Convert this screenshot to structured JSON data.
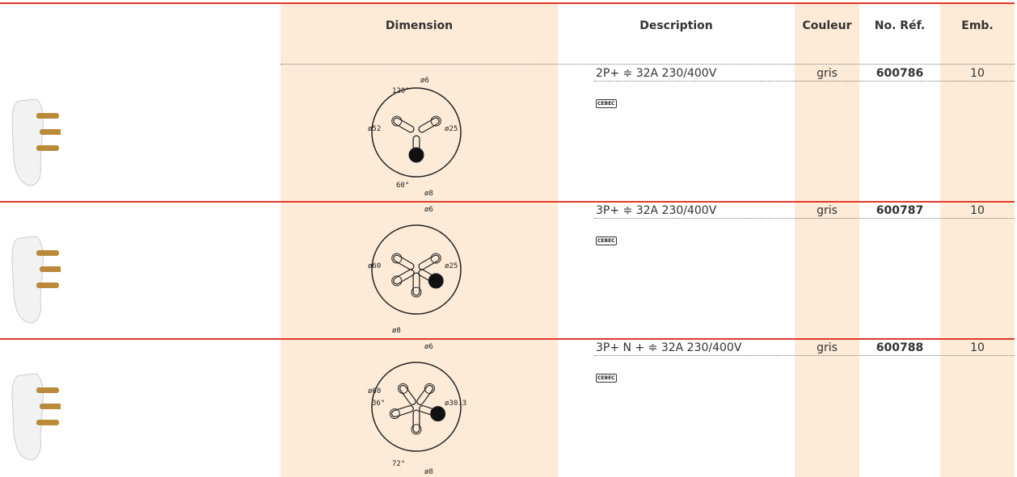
{
  "header": {
    "columns": [
      "Dimension",
      "Description",
      "Couleur",
      "No. Réf.",
      "Emb."
    ]
  },
  "rows": [
    {
      "diagram_labels": [
        "ø6",
        "120°",
        "ø52",
        "ø25",
        "60°",
        "ø8"
      ],
      "description": "2P+ ≑ 32A  230/400V",
      "certification": "CEBEC",
      "color": "gris",
      "ref": "600786",
      "pack": 10
    },
    {
      "diagram_labels": [
        "ø6",
        "ø60",
        "ø25",
        "ø8"
      ],
      "description": "3P+ ≑ 32A  230/400V",
      "certification": "CEBEC",
      "color": "gris",
      "ref": "600787",
      "pack": 10
    },
    {
      "diagram_labels": [
        "ø6",
        "ø60",
        "36°",
        "ø30.3",
        "72°",
        "ø8"
      ],
      "description": "3P+ N + ≑ 32A  230/400V",
      "certification": "CEBEC",
      "color": "gris",
      "ref": "600788",
      "pack": 10
    }
  ]
}
